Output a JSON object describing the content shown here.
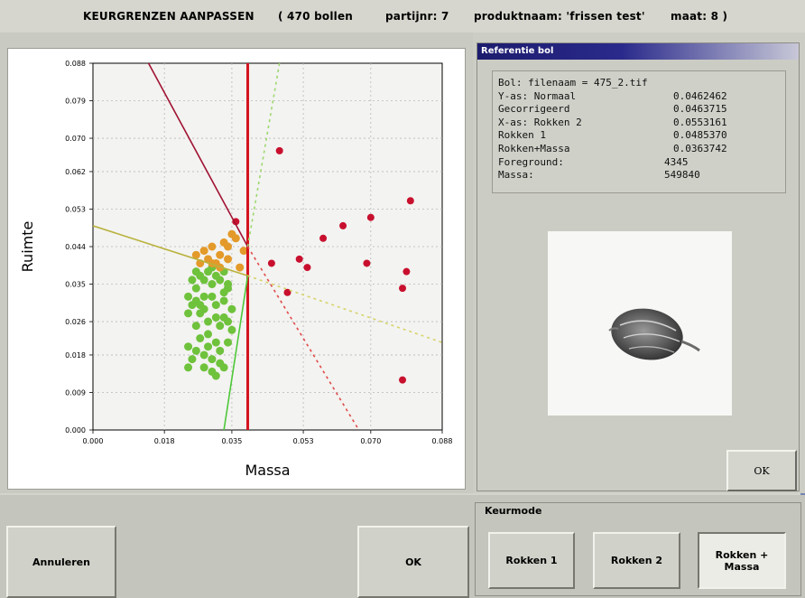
{
  "header": {
    "title": "KEURGRENZEN AANPASSEN",
    "count": "( 470 bollen",
    "partij": "partijnr: 7",
    "product": "produktnaam: 'frissen test'",
    "maat": "maat: 8 )"
  },
  "chart_data": {
    "type": "scatter",
    "xlabel": "Massa",
    "ylabel": "Ruimte",
    "xlim": [
      0.0,
      0.088
    ],
    "ylim": [
      0.0,
      0.088
    ],
    "x_ticks": [
      "0.000",
      "0.018",
      "0.035",
      "0.053",
      "0.070",
      "0.088"
    ],
    "y_ticks": [
      "0.000",
      "0.009",
      "0.018",
      "0.026",
      "0.035",
      "0.044",
      "0.053",
      "0.062",
      "0.070",
      "0.079",
      "0.088"
    ],
    "grid": true,
    "series": [
      {
        "color": "#6fc23c",
        "points": [
          [
            0.025,
            0.03
          ],
          [
            0.026,
            0.034
          ],
          [
            0.027,
            0.028
          ],
          [
            0.028,
            0.032
          ],
          [
            0.029,
            0.026
          ],
          [
            0.03,
            0.035
          ],
          [
            0.031,
            0.03
          ],
          [
            0.032,
            0.025
          ],
          [
            0.033,
            0.033
          ],
          [
            0.027,
            0.022
          ],
          [
            0.029,
            0.02
          ],
          [
            0.031,
            0.021
          ],
          [
            0.033,
            0.027
          ],
          [
            0.034,
            0.034
          ],
          [
            0.026,
            0.025
          ],
          [
            0.028,
            0.018
          ],
          [
            0.03,
            0.017
          ],
          [
            0.032,
            0.019
          ],
          [
            0.025,
            0.036
          ],
          [
            0.027,
            0.037
          ],
          [
            0.029,
            0.038
          ],
          [
            0.031,
            0.037
          ],
          [
            0.033,
            0.038
          ],
          [
            0.024,
            0.028
          ],
          [
            0.024,
            0.032
          ],
          [
            0.035,
            0.029
          ],
          [
            0.035,
            0.024
          ],
          [
            0.03,
            0.014
          ],
          [
            0.028,
            0.015
          ],
          [
            0.031,
            0.013
          ],
          [
            0.033,
            0.015
          ],
          [
            0.024,
            0.02
          ],
          [
            0.026,
            0.019
          ],
          [
            0.034,
            0.021
          ],
          [
            0.032,
            0.036
          ],
          [
            0.028,
            0.036
          ],
          [
            0.026,
            0.038
          ],
          [
            0.03,
            0.039
          ],
          [
            0.034,
            0.026
          ],
          [
            0.029,
            0.023
          ],
          [
            0.027,
            0.03
          ],
          [
            0.031,
            0.027
          ],
          [
            0.025,
            0.017
          ],
          [
            0.024,
            0.015
          ],
          [
            0.032,
            0.016
          ],
          [
            0.033,
            0.031
          ],
          [
            0.03,
            0.032
          ],
          [
            0.028,
            0.029
          ],
          [
            0.026,
            0.031
          ],
          [
            0.034,
            0.035
          ]
        ]
      },
      {
        "color": "#e39a2a",
        "points": [
          [
            0.026,
            0.042
          ],
          [
            0.027,
            0.04
          ],
          [
            0.028,
            0.043
          ],
          [
            0.029,
            0.041
          ],
          [
            0.03,
            0.044
          ],
          [
            0.031,
            0.04
          ],
          [
            0.032,
            0.042
          ],
          [
            0.033,
            0.045
          ],
          [
            0.034,
            0.044
          ],
          [
            0.035,
            0.047
          ],
          [
            0.036,
            0.046
          ],
          [
            0.03,
            0.04
          ],
          [
            0.032,
            0.039
          ],
          [
            0.034,
            0.041
          ],
          [
            0.037,
            0.039
          ],
          [
            0.038,
            0.043
          ]
        ]
      },
      {
        "color": "#c8102e",
        "points": [
          [
            0.036,
            0.05
          ],
          [
            0.047,
            0.067
          ],
          [
            0.045,
            0.04
          ],
          [
            0.049,
            0.033
          ],
          [
            0.052,
            0.041
          ],
          [
            0.054,
            0.039
          ],
          [
            0.058,
            0.046
          ],
          [
            0.063,
            0.049
          ],
          [
            0.069,
            0.04
          ],
          [
            0.07,
            0.051
          ],
          [
            0.08,
            0.055
          ],
          [
            0.079,
            0.038
          ],
          [
            0.078,
            0.034
          ],
          [
            0.078,
            0.012
          ]
        ]
      }
    ],
    "lines": [
      {
        "name": "vertical-threshold",
        "color": "#d4141e",
        "points": [
          [
            0.039,
            0.0
          ],
          [
            0.039,
            0.088
          ]
        ]
      },
      {
        "name": "diagonal-upper",
        "color": "#a01232",
        "points": [
          [
            0.014,
            0.088
          ],
          [
            0.039,
            0.044
          ]
        ]
      },
      {
        "name": "yellow-olive",
        "color": "#b9b23c",
        "points": [
          [
            0.0,
            0.049
          ],
          [
            0.039,
            0.037
          ]
        ]
      },
      {
        "name": "green-steep",
        "color": "#4ec83a",
        "points": [
          [
            0.033,
            0.0
          ],
          [
            0.039,
            0.037
          ]
        ]
      },
      {
        "name": "green-dotted",
        "color": "#9bd86c",
        "dashed": true,
        "points": [
          [
            0.039,
            0.044
          ],
          [
            0.047,
            0.088
          ]
        ]
      },
      {
        "name": "red-dotted",
        "color": "#e04a4a",
        "dashed": true,
        "points": [
          [
            0.039,
            0.044
          ],
          [
            0.067,
            0.0
          ]
        ]
      },
      {
        "name": "yellow-dotted",
        "color": "#d7d36a",
        "dashed": true,
        "points": [
          [
            0.039,
            0.037
          ],
          [
            0.088,
            0.021
          ]
        ]
      }
    ]
  },
  "reference": {
    "title": "Referentie bol",
    "lines": [
      "Bol:  filenaam = 475_2.tif",
      "  Y-as: Normaal",
      "        Gecorrigeerd",
      "  X-as: Rokken 2",
      "        Rokken 1",
      "        Rokken+Massa",
      "  Foreground:",
      "  Massa:"
    ],
    "values": [
      "",
      "0.0462462",
      "0.0463715",
      "0.0553161",
      "0.0485370",
      "0.0363742",
      "4345",
      "549840"
    ],
    "ok_label": "OK"
  },
  "buttons": {
    "cancel": "Annuleren",
    "ok": "OK"
  },
  "keurmode": {
    "label": "Keurmode",
    "options": [
      "Rokken 1",
      "Rokken 2",
      "Rokken +\nMassa"
    ],
    "selected_index": 2
  },
  "colors": {
    "window_bg": "#d4d4cc",
    "ref_title": "#1c1c6e",
    "green": "#6fc23c",
    "orange": "#e39a2a",
    "red": "#c8102e"
  }
}
